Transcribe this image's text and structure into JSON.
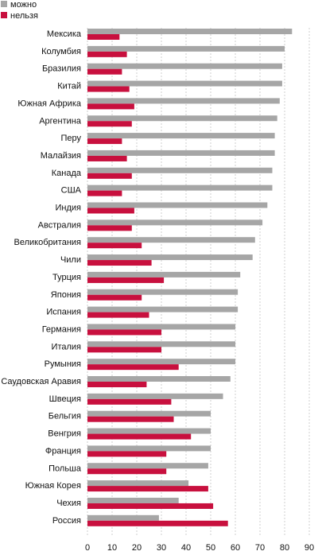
{
  "chart_data": {
    "type": "bar",
    "orientation": "horizontal",
    "categories": [
      "Мексика",
      "Колумбия",
      "Бразилия",
      "Китай",
      "Южная Африка",
      "Аргентина",
      "Перу",
      "Малайзия",
      "Канада",
      "США",
      "Индия",
      "Австралия",
      "Великобритания",
      "Чили",
      "Турция",
      "Япония",
      "Испания",
      "Германия",
      "Италия",
      "Румыния",
      "Саудовская Аравия",
      "Швеция",
      "Бельгия",
      "Венгрия",
      "Франция",
      "Польша",
      "Южная Корея",
      "Чехия",
      "Россия"
    ],
    "series": [
      {
        "name": "можно",
        "color": "#a6a6a6",
        "values": [
          83,
          80,
          79,
          79,
          78,
          77,
          76,
          76,
          75,
          75,
          73,
          71,
          68,
          67,
          62,
          61,
          61,
          60,
          60,
          60,
          58,
          55,
          50,
          50,
          50,
          49,
          41,
          37,
          29
        ]
      },
      {
        "name": "нельзя",
        "color": "#c8103e",
        "values": [
          13,
          16,
          14,
          17,
          19,
          18,
          14,
          16,
          18,
          14,
          19,
          18,
          22,
          26,
          31,
          22,
          25,
          30,
          30,
          37,
          24,
          34,
          35,
          42,
          32,
          32,
          49,
          51,
          57
        ]
      }
    ],
    "xlim": [
      0,
      90
    ],
    "xticks": [
      "0",
      "10",
      "20",
      "30",
      "40",
      "50",
      "60",
      "70",
      "80",
      "90"
    ],
    "legend_position": "top-left",
    "grid": true,
    "title": "",
    "xlabel": "",
    "ylabel": ""
  }
}
